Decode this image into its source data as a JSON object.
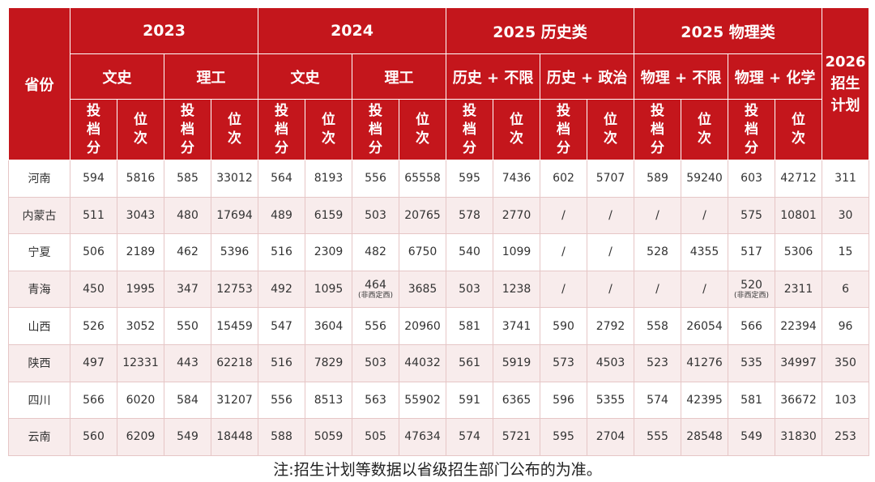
{
  "table": {
    "province_header": "省份",
    "plan_header": "2026\n招生\n计划",
    "year_groups": [
      "2023",
      "2024",
      "2025 历史类",
      "2025 物理类"
    ],
    "subject_groups": [
      "文史",
      "理工",
      "文史",
      "理工",
      "历史 + 不限",
      "历史 + 政治",
      "物理 + 不限",
      "物理 + 化学"
    ],
    "score_label": "投\n档\n分",
    "rank_label": "位\n次",
    "rows": [
      {
        "province": "河南",
        "cells": [
          {
            "v": "594"
          },
          {
            "v": "5816"
          },
          {
            "v": "585"
          },
          {
            "v": "33012"
          },
          {
            "v": "564"
          },
          {
            "v": "8193"
          },
          {
            "v": "556"
          },
          {
            "v": "65558"
          },
          {
            "v": "595"
          },
          {
            "v": "7436"
          },
          {
            "v": "602"
          },
          {
            "v": "5707"
          },
          {
            "v": "589"
          },
          {
            "v": "59240"
          },
          {
            "v": "603"
          },
          {
            "v": "42712"
          }
        ],
        "plan": "311"
      },
      {
        "province": "内蒙古",
        "cells": [
          {
            "v": "511"
          },
          {
            "v": "3043"
          },
          {
            "v": "480"
          },
          {
            "v": "17694"
          },
          {
            "v": "489"
          },
          {
            "v": "6159"
          },
          {
            "v": "503"
          },
          {
            "v": "20765"
          },
          {
            "v": "578"
          },
          {
            "v": "2770"
          },
          {
            "v": "/"
          },
          {
            "v": "/"
          },
          {
            "v": "/"
          },
          {
            "v": "/"
          },
          {
            "v": "575"
          },
          {
            "v": "10801"
          }
        ],
        "plan": "30"
      },
      {
        "province": "宁夏",
        "cells": [
          {
            "v": "506"
          },
          {
            "v": "2189"
          },
          {
            "v": "462"
          },
          {
            "v": "5396"
          },
          {
            "v": "516"
          },
          {
            "v": "2309"
          },
          {
            "v": "482"
          },
          {
            "v": "6750"
          },
          {
            "v": "540"
          },
          {
            "v": "1099"
          },
          {
            "v": "/"
          },
          {
            "v": "/"
          },
          {
            "v": "528"
          },
          {
            "v": "4355"
          },
          {
            "v": "517"
          },
          {
            "v": "5306"
          }
        ],
        "plan": "15"
      },
      {
        "province": "青海",
        "cells": [
          {
            "v": "450"
          },
          {
            "v": "1995"
          },
          {
            "v": "347"
          },
          {
            "v": "12753"
          },
          {
            "v": "492"
          },
          {
            "v": "1095"
          },
          {
            "v": "464",
            "note": "(非西定西)"
          },
          {
            "v": "3685"
          },
          {
            "v": "503"
          },
          {
            "v": "1238"
          },
          {
            "v": "/"
          },
          {
            "v": "/"
          },
          {
            "v": "/"
          },
          {
            "v": "/"
          },
          {
            "v": "520",
            "note": "(非西定西)"
          },
          {
            "v": "2311"
          }
        ],
        "plan": "6"
      },
      {
        "province": "山西",
        "cells": [
          {
            "v": "526"
          },
          {
            "v": "3052"
          },
          {
            "v": "550"
          },
          {
            "v": "15459"
          },
          {
            "v": "547"
          },
          {
            "v": "3604"
          },
          {
            "v": "556"
          },
          {
            "v": "20960"
          },
          {
            "v": "581"
          },
          {
            "v": "3741"
          },
          {
            "v": "590"
          },
          {
            "v": "2792"
          },
          {
            "v": "558"
          },
          {
            "v": "26054"
          },
          {
            "v": "566"
          },
          {
            "v": "22394"
          }
        ],
        "plan": "96"
      },
      {
        "province": "陕西",
        "cells": [
          {
            "v": "497"
          },
          {
            "v": "12331"
          },
          {
            "v": "443"
          },
          {
            "v": "62218"
          },
          {
            "v": "516"
          },
          {
            "v": "7829"
          },
          {
            "v": "503"
          },
          {
            "v": "44032"
          },
          {
            "v": "561"
          },
          {
            "v": "5919"
          },
          {
            "v": "573"
          },
          {
            "v": "4503"
          },
          {
            "v": "523"
          },
          {
            "v": "41276"
          },
          {
            "v": "535"
          },
          {
            "v": "34997"
          }
        ],
        "plan": "350"
      },
      {
        "province": "四川",
        "cells": [
          {
            "v": "566"
          },
          {
            "v": "6020"
          },
          {
            "v": "584"
          },
          {
            "v": "31207"
          },
          {
            "v": "556"
          },
          {
            "v": "8513"
          },
          {
            "v": "563"
          },
          {
            "v": "55902"
          },
          {
            "v": "591"
          },
          {
            "v": "6365"
          },
          {
            "v": "596"
          },
          {
            "v": "5355"
          },
          {
            "v": "574"
          },
          {
            "v": "42395"
          },
          {
            "v": "581"
          },
          {
            "v": "36672"
          }
        ],
        "plan": "103"
      },
      {
        "province": "云南",
        "cells": [
          {
            "v": "560"
          },
          {
            "v": "6209"
          },
          {
            "v": "549"
          },
          {
            "v": "18448"
          },
          {
            "v": "588"
          },
          {
            "v": "5059"
          },
          {
            "v": "505"
          },
          {
            "v": "47634"
          },
          {
            "v": "574"
          },
          {
            "v": "5721"
          },
          {
            "v": "595"
          },
          {
            "v": "2704"
          },
          {
            "v": "555"
          },
          {
            "v": "28548"
          },
          {
            "v": "549"
          },
          {
            "v": "31830"
          }
        ],
        "plan": "253"
      }
    ]
  },
  "note": "注:招生计划等数据以省级招生部门公布的为准。",
  "colors": {
    "header_bg": "#c4161c",
    "stripe_bg": "#f8ecec"
  }
}
